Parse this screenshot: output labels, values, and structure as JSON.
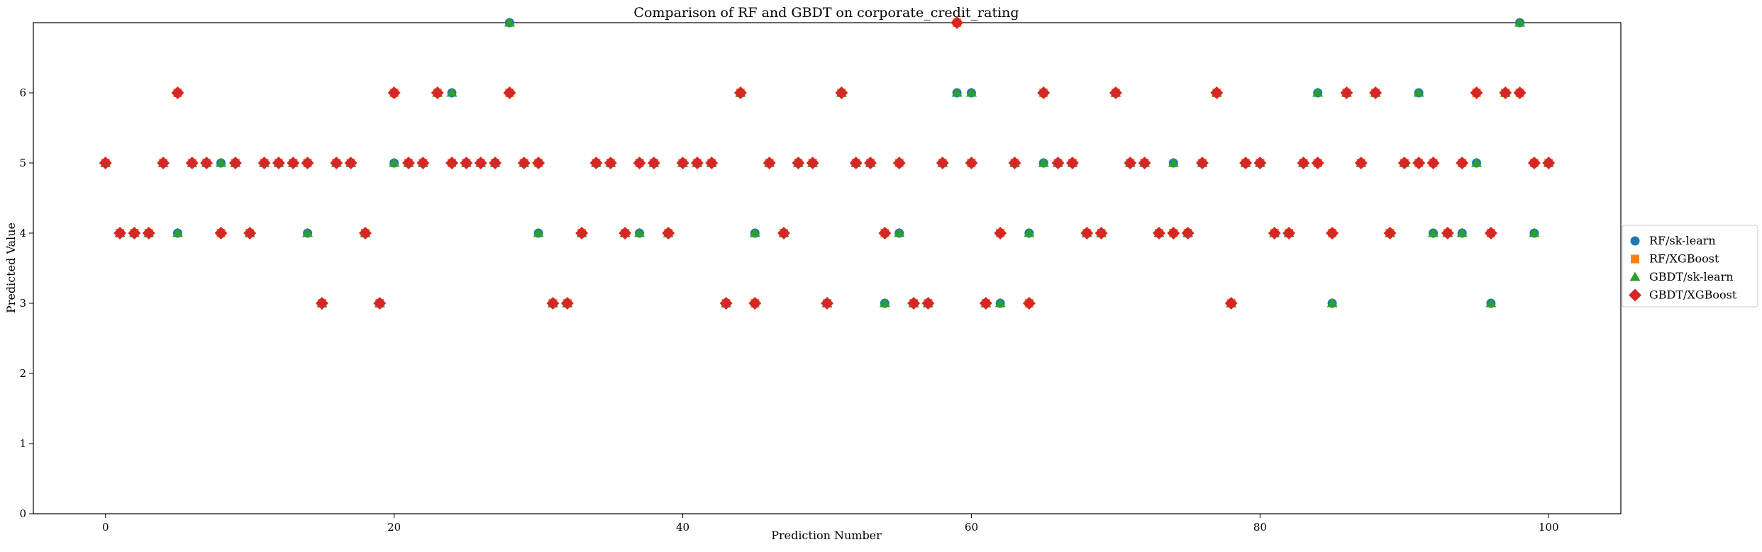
{
  "chart_data": {
    "type": "scatter",
    "title": "Comparison of RF and GBDT on corporate_credit_rating",
    "xlabel": "Prediction Number",
    "ylabel": "Predicted Value",
    "xlim": [
      -5,
      105
    ],
    "ylim": [
      0,
      7
    ],
    "xticks": [
      0,
      20,
      40,
      60,
      80,
      100
    ],
    "yticks": [
      0,
      1,
      2,
      3,
      4,
      5,
      6
    ],
    "grid": false,
    "legend_position": "center-right-outside",
    "x": [
      0,
      1,
      2,
      3,
      4,
      5,
      6,
      7,
      8,
      9,
      10,
      11,
      12,
      13,
      14,
      15,
      16,
      17,
      18,
      19,
      20,
      21,
      22,
      23,
      24,
      25,
      26,
      27,
      28,
      29,
      30,
      31,
      32,
      33,
      34,
      35,
      36,
      37,
      38,
      39,
      40,
      41,
      42,
      43,
      44,
      45,
      46,
      47,
      48,
      49,
      50,
      51,
      52,
      53,
      54,
      55,
      56,
      57,
      58,
      59,
      60,
      61,
      62,
      63,
      64,
      65,
      66,
      67,
      68,
      69,
      70,
      71,
      72,
      73,
      74,
      75,
      76,
      77,
      78,
      79,
      80,
      81,
      82,
      83,
      84,
      85,
      86,
      87,
      88,
      89,
      90,
      91,
      92,
      93,
      94,
      95,
      96,
      97,
      98,
      99,
      100
    ],
    "series": [
      {
        "name": "RF/sk-learn",
        "color": "#1f77b4",
        "marker": "circle",
        "values": [
          5,
          4,
          4,
          4,
          5,
          4,
          5,
          5,
          5,
          5,
          4,
          5,
          5,
          5,
          4,
          3,
          5,
          5,
          4,
          3,
          5,
          5,
          5,
          6,
          6,
          5,
          5,
          5,
          7,
          5,
          4,
          3,
          3,
          4,
          5,
          5,
          4,
          4,
          5,
          4,
          5,
          5,
          5,
          3,
          6,
          4,
          5,
          4,
          5,
          5,
          3,
          6,
          5,
          5,
          3,
          4,
          3,
          3,
          5,
          6,
          6,
          3,
          3,
          5,
          4,
          5,
          5,
          5,
          4,
          4,
          6,
          5,
          5,
          4,
          5,
          4,
          5,
          6,
          3,
          5,
          5,
          4,
          4,
          5,
          6,
          3,
          6,
          5,
          6,
          4,
          5,
          6,
          4,
          4,
          4,
          5,
          3,
          6,
          7,
          4,
          5
        ]
      },
      {
        "name": "RF/XGBoost",
        "color": "#ff7f0e",
        "marker": "square",
        "values": [
          5,
          4,
          4,
          4,
          5,
          6,
          5,
          5,
          4,
          5,
          4,
          5,
          5,
          5,
          5,
          3,
          5,
          5,
          4,
          3,
          6,
          5,
          5,
          6,
          5,
          5,
          5,
          5,
          6,
          5,
          5,
          3,
          3,
          4,
          5,
          5,
          4,
          5,
          5,
          4,
          5,
          5,
          5,
          3,
          6,
          3,
          5,
          4,
          5,
          5,
          3,
          6,
          5,
          5,
          4,
          5,
          3,
          3,
          5,
          7,
          5,
          3,
          4,
          5,
          3,
          6,
          5,
          5,
          4,
          4,
          6,
          5,
          5,
          4,
          4,
          4,
          5,
          6,
          3,
          5,
          5,
          4,
          4,
          5,
          5,
          4,
          6,
          5,
          6,
          4,
          5,
          5,
          5,
          4,
          5,
          6,
          4,
          6,
          6,
          5,
          5
        ]
      },
      {
        "name": "GBDT/sk-learn",
        "color": "#2ca02c",
        "marker": "triangle",
        "values": [
          5,
          4,
          4,
          4,
          5,
          4,
          5,
          5,
          5,
          5,
          4,
          5,
          5,
          5,
          4,
          3,
          5,
          5,
          4,
          3,
          5,
          5,
          5,
          6,
          6,
          5,
          5,
          5,
          7,
          5,
          4,
          3,
          3,
          4,
          5,
          5,
          4,
          4,
          5,
          4,
          5,
          5,
          5,
          3,
          6,
          4,
          5,
          4,
          5,
          5,
          3,
          6,
          5,
          5,
          3,
          4,
          3,
          3,
          5,
          6,
          6,
          3,
          3,
          5,
          4,
          5,
          5,
          5,
          4,
          4,
          6,
          5,
          5,
          4,
          5,
          4,
          5,
          6,
          3,
          5,
          5,
          4,
          4,
          5,
          6,
          3,
          6,
          5,
          6,
          4,
          5,
          6,
          4,
          4,
          4,
          5,
          3,
          6,
          7,
          4,
          5
        ]
      },
      {
        "name": "GBDT/XGBoost",
        "color": "#d62728",
        "marker": "diamond",
        "values": [
          5,
          4,
          4,
          4,
          5,
          6,
          5,
          5,
          4,
          5,
          4,
          5,
          5,
          5,
          5,
          3,
          5,
          5,
          4,
          3,
          6,
          5,
          5,
          6,
          5,
          5,
          5,
          5,
          6,
          5,
          5,
          3,
          3,
          4,
          5,
          5,
          4,
          5,
          5,
          4,
          5,
          5,
          5,
          3,
          6,
          3,
          5,
          4,
          5,
          5,
          3,
          6,
          5,
          5,
          4,
          5,
          3,
          3,
          5,
          7,
          5,
          3,
          4,
          5,
          3,
          6,
          5,
          5,
          4,
          4,
          6,
          5,
          5,
          4,
          4,
          4,
          5,
          6,
          3,
          5,
          5,
          4,
          4,
          5,
          5,
          4,
          6,
          5,
          6,
          4,
          5,
          5,
          5,
          4,
          5,
          6,
          4,
          6,
          6,
          5,
          5
        ]
      }
    ]
  }
}
